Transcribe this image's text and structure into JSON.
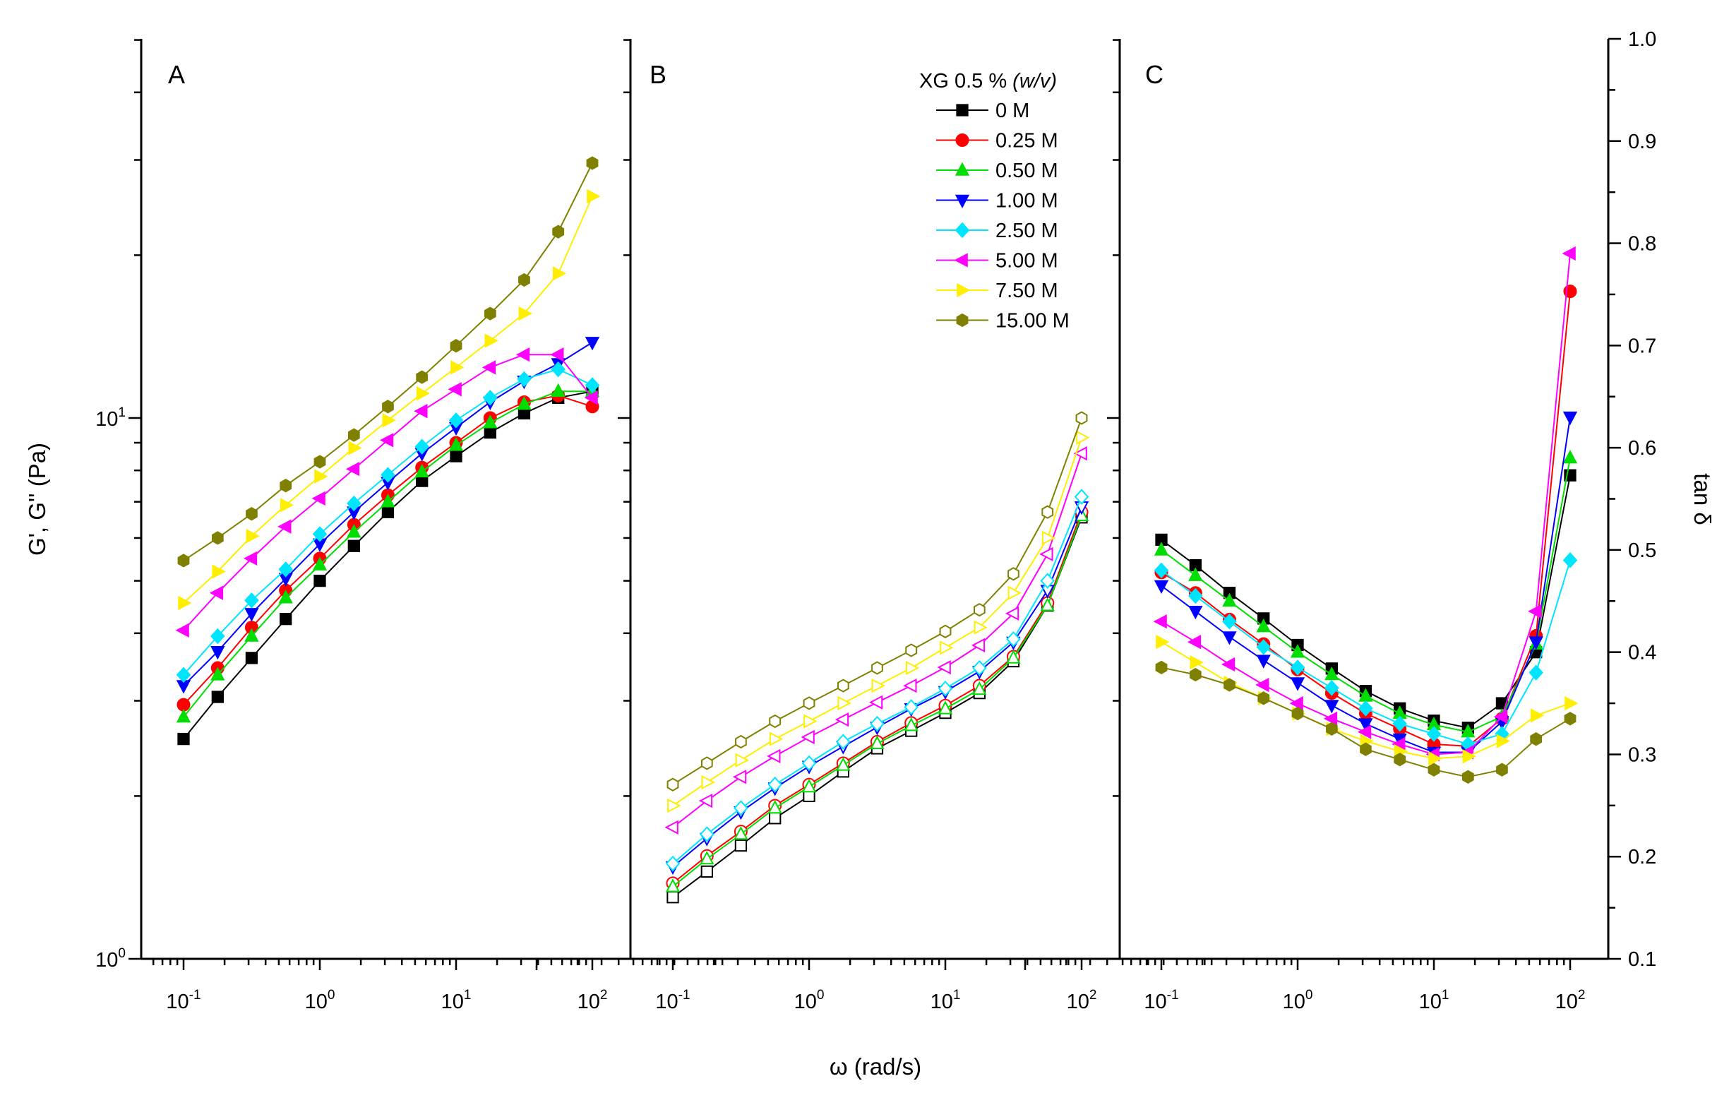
{
  "chart_data": {
    "type": "scatter",
    "xlabel": "ω (rad/s)",
    "ylabel_left": "G', G'' (Pa)",
    "ylabel_right": "tan δ",
    "x_scale": "log",
    "xlim": [
      0.05,
      200
    ],
    "x_ticks": [
      {
        "base": "10",
        "exp": "-1"
      },
      {
        "base": "10",
        "exp": "0"
      },
      {
        "base": "10",
        "exp": "1"
      },
      {
        "base": "10",
        "exp": "2"
      }
    ],
    "left_ylim": [
      1,
      50
    ],
    "left_y_ticks": [
      {
        "base": "10",
        "exp": "0"
      },
      {
        "base": "10",
        "exp": "1"
      }
    ],
    "right_ylim": [
      0.1,
      1.0
    ],
    "right_y_ticks": [
      "0.1",
      "0.2",
      "0.3",
      "0.4",
      "0.5",
      "0.6",
      "0.7",
      "0.8",
      "0.9",
      "1.0"
    ],
    "x": [
      0.1,
      0.178,
      0.316,
      0.562,
      1.0,
      1.78,
      3.16,
      5.62,
      10.0,
      17.8,
      31.6,
      56.2,
      100.0
    ],
    "legend_title": "XG 0.5 % ",
    "legend_title_italic": "(w/v)",
    "legend_title_close": "",
    "series_styles": [
      {
        "name": "0 M",
        "color": "#000000",
        "marker": "square"
      },
      {
        "name": "0.25 M",
        "color": "#ff0000",
        "marker": "circle"
      },
      {
        "name": "0.50 M",
        "color": "#00dd00",
        "marker": "triangle-up"
      },
      {
        "name": "1.00 M",
        "color": "#0000ff",
        "marker": "triangle-down"
      },
      {
        "name": "2.50 M",
        "color": "#00e5ff",
        "marker": "diamond"
      },
      {
        "name": "5.00 M",
        "color": "#ff00ff",
        "marker": "triangle-left"
      },
      {
        "name": "7.50 M",
        "color": "#ffee00",
        "marker": "triangle-right"
      },
      {
        "name": "15.00 M",
        "color": "#808000",
        "marker": "hexagon"
      }
    ],
    "panels": [
      {
        "label": "A",
        "quantity": "G'",
        "filled": true,
        "series": [
          {
            "name": "0 M",
            "values": [
              2.55,
              3.05,
              3.6,
              4.25,
              5.0,
              5.8,
              6.7,
              7.65,
              8.5,
              9.4,
              10.2,
              10.9,
              11.2
            ]
          },
          {
            "name": "0.25 M",
            "values": [
              2.95,
              3.45,
              4.1,
              4.8,
              5.5,
              6.35,
              7.2,
              8.1,
              9.0,
              10.0,
              10.7,
              11.0,
              10.5
            ]
          },
          {
            "name": "0.50 M",
            "values": [
              2.8,
              3.35,
              3.95,
              4.65,
              5.35,
              6.15,
              7.0,
              7.95,
              8.9,
              9.8,
              10.6,
              11.2,
              11.2
            ]
          },
          {
            "name": "1.00 M",
            "values": [
              3.2,
              3.7,
              4.35,
              5.05,
              5.85,
              6.7,
              7.6,
              8.6,
              9.6,
              10.7,
              11.7,
              12.6,
              13.8
            ]
          },
          {
            "name": "2.50 M",
            "values": [
              3.35,
              3.95,
              4.6,
              5.25,
              6.1,
              6.95,
              7.85,
              8.85,
              9.9,
              10.9,
              11.8,
              12.3,
              11.5
            ]
          },
          {
            "name": "5.00 M",
            "values": [
              4.05,
              4.75,
              5.5,
              6.3,
              7.1,
              8.05,
              9.1,
              10.3,
              11.3,
              12.4,
              13.1,
              13.1,
              10.9
            ]
          },
          {
            "name": "7.50 M",
            "values": [
              4.55,
              5.2,
              6.05,
              6.9,
              7.8,
              8.8,
              9.9,
              11.1,
              12.4,
              13.9,
              15.6,
              18.5,
              25.7
            ]
          },
          {
            "name": "15.00 M",
            "values": [
              5.45,
              6.0,
              6.65,
              7.5,
              8.3,
              9.3,
              10.5,
              11.9,
              13.6,
              15.6,
              18.0,
              22.1,
              29.6
            ]
          }
        ]
      },
      {
        "label": "B",
        "quantity": "G''",
        "filled": false,
        "series": [
          {
            "name": "0 M",
            "values": [
              1.3,
              1.45,
              1.62,
              1.82,
              2.0,
              2.22,
              2.45,
              2.64,
              2.85,
              3.1,
              3.55,
              4.5,
              6.55
            ]
          },
          {
            "name": "0.25 M",
            "values": [
              1.38,
              1.55,
              1.72,
              1.92,
              2.1,
              2.3,
              2.52,
              2.73,
              2.94,
              3.2,
              3.62,
              4.55,
              6.7
            ]
          },
          {
            "name": "0.50 M",
            "values": [
              1.36,
              1.53,
              1.7,
              1.9,
              2.08,
              2.28,
              2.5,
              2.7,
              2.9,
              3.15,
              3.6,
              4.5,
              6.6
            ]
          },
          {
            "name": "1.00 M",
            "values": [
              1.48,
              1.67,
              1.87,
              2.07,
              2.27,
              2.47,
              2.68,
              2.9,
              3.12,
              3.4,
              3.85,
              4.8,
              6.85
            ]
          },
          {
            "name": "2.50 M",
            "values": [
              1.5,
              1.7,
              1.9,
              2.1,
              2.3,
              2.52,
              2.72,
              2.92,
              3.16,
              3.45,
              3.9,
              5.0,
              7.15
            ]
          },
          {
            "name": "5.00 M",
            "values": [
              1.75,
              1.96,
              2.17,
              2.37,
              2.57,
              2.77,
              2.98,
              3.2,
              3.46,
              3.8,
              4.35,
              5.6,
              8.6
            ]
          },
          {
            "name": "7.50 M",
            "values": [
              1.92,
              2.12,
              2.33,
              2.55,
              2.75,
              2.97,
              3.2,
              3.45,
              3.76,
              4.1,
              4.75,
              6.0,
              9.2
            ]
          },
          {
            "name": "15.00 M",
            "values": [
              2.1,
              2.3,
              2.52,
              2.75,
              2.97,
              3.2,
              3.45,
              3.72,
              4.03,
              4.42,
              5.15,
              6.7,
              10.0
            ]
          }
        ]
      },
      {
        "label": "C",
        "quantity": "tan δ",
        "filled": true,
        "series": [
          {
            "name": "0 M",
            "values": [
              0.51,
              0.485,
              0.458,
              0.433,
              0.407,
              0.384,
              0.362,
              0.345,
              0.333,
              0.326,
              0.35,
              0.4,
              0.573
            ]
          },
          {
            "name": "0.25 M",
            "values": [
              0.478,
              0.458,
              0.432,
              0.408,
              0.383,
              0.36,
              0.34,
              0.325,
              0.31,
              0.308,
              0.335,
              0.416,
              0.753
            ]
          },
          {
            "name": "0.50 M",
            "values": [
              0.5,
              0.475,
              0.45,
              0.425,
              0.4,
              0.378,
              0.357,
              0.34,
              0.329,
              0.322,
              0.337,
              0.408,
              0.59
            ]
          },
          {
            "name": "1.00 M",
            "values": [
              0.465,
              0.44,
              0.415,
              0.392,
              0.37,
              0.348,
              0.33,
              0.315,
              0.302,
              0.302,
              0.332,
              0.41,
              0.63
            ]
          },
          {
            "name": "2.50 M",
            "values": [
              0.48,
              0.455,
              0.43,
              0.405,
              0.385,
              0.365,
              0.345,
              0.33,
              0.32,
              0.31,
              0.32,
              0.38,
              0.49
            ]
          },
          {
            "name": "5.00 M",
            "values": [
              0.43,
              0.41,
              0.388,
              0.368,
              0.35,
              0.335,
              0.322,
              0.31,
              0.3,
              0.302,
              0.337,
              0.44,
              0.79
            ]
          },
          {
            "name": "7.50 M",
            "values": [
              0.41,
              0.39,
              0.37,
              0.355,
              0.34,
              0.325,
              0.313,
              0.303,
              0.296,
              0.298,
              0.313,
              0.338,
              0.35
            ]
          },
          {
            "name": "15.00 M",
            "values": [
              0.385,
              0.378,
              0.368,
              0.355,
              0.34,
              0.325,
              0.305,
              0.295,
              0.285,
              0.278,
              0.285,
              0.315,
              0.335
            ]
          }
        ]
      }
    ]
  }
}
